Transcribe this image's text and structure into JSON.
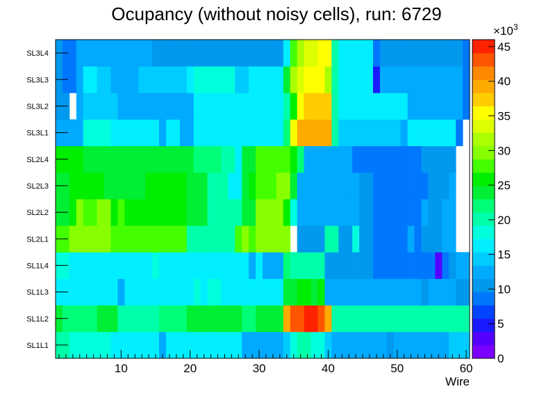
{
  "chart_data": {
    "type": "heatmap",
    "title": "Ocupancy (without noisy cells), run: 6729",
    "xlabel": "Wire",
    "x_ticks": [
      10,
      20,
      30,
      40,
      50,
      60
    ],
    "x_range": [
      0.5,
      60.5
    ],
    "layers": [
      "SL1L1",
      "SL1L2",
      "SL1L3",
      "SL1L4",
      "SL2L1",
      "SL2L2",
      "SL2L3",
      "SL2L4",
      "SL3L1",
      "SL3L2",
      "SL3L3",
      "SL3L4"
    ],
    "z_range": [
      0,
      46000
    ],
    "z_ticks": [
      0,
      5,
      10,
      15,
      20,
      25,
      30,
      35,
      40,
      45
    ],
    "z_exponent_label": "×10",
    "z_exponent_power": "3",
    "palette": [
      "#7a00ff",
      "#5500ff",
      "#1a1aff",
      "#0044ff",
      "#0077ff",
      "#0099ee",
      "#00aaff",
      "#00ccff",
      "#00eeff",
      "#00ffdd",
      "#00ffaa",
      "#00ff77",
      "#00ee33",
      "#00ee00",
      "#44ff00",
      "#88ff00",
      "#aaff00",
      "#ddff00",
      "#ffff00",
      "#ffcc00",
      "#ffaa00",
      "#ff8800",
      "#ff5500",
      "#ff2200"
    ],
    "rows": {
      "SL1L1": [
        20,
        20,
        18,
        18,
        18,
        18,
        18,
        18,
        17,
        17,
        17,
        17,
        17,
        17,
        17,
        12,
        17,
        17,
        17,
        17,
        17,
        17,
        17,
        17,
        17,
        17,
        17,
        12,
        12,
        12,
        12,
        12,
        12,
        14,
        18,
        20,
        20,
        18,
        18,
        14,
        12,
        12,
        12,
        12,
        12,
        12,
        12,
        12,
        10,
        12,
        12,
        12,
        12,
        12,
        12,
        12,
        12,
        14,
        14,
        14
      ],
      "SL1L2": [
        23,
        22,
        22,
        22,
        22,
        22,
        24,
        24,
        24,
        21,
        21,
        21,
        21,
        21,
        21,
        22,
        22,
        22,
        22,
        24,
        24,
        24,
        24,
        24,
        24,
        24,
        24,
        22,
        22,
        24,
        24,
        24,
        24,
        40,
        43,
        44,
        45,
        45,
        44,
        40,
        21,
        21,
        21,
        21,
        21,
        21,
        21,
        21,
        21,
        20,
        20,
        20,
        20,
        20,
        20,
        20,
        20,
        20,
        20,
        20
      ],
      "SL1L3": [
        16,
        16,
        16,
        16,
        16,
        16,
        16,
        16,
        16,
        12,
        16,
        16,
        16,
        16,
        16,
        16,
        16,
        16,
        16,
        16,
        18,
        16,
        18,
        18,
        16,
        16,
        16,
        16,
        16,
        16,
        16,
        16,
        16,
        24,
        24,
        26,
        26,
        24,
        26,
        12,
        12,
        12,
        12,
        12,
        12,
        12,
        12,
        12,
        12,
        12,
        12,
        12,
        12,
        11,
        12,
        12,
        12,
        12,
        11,
        11
      ],
      "SL1L4": [
        18,
        18,
        16,
        16,
        16,
        16,
        16,
        16,
        16,
        16,
        16,
        16,
        16,
        16,
        18,
        16,
        16,
        16,
        16,
        16,
        16,
        16,
        16,
        16,
        16,
        16,
        16,
        16,
        12,
        16,
        12,
        12,
        12,
        22,
        20,
        20,
        20,
        20,
        20,
        10,
        10,
        10,
        10,
        10,
        10,
        10,
        9,
        9,
        9,
        9,
        9,
        9,
        9,
        9,
        9,
        2,
        9,
        10,
        12,
        12
      ],
      "SL2L1": [
        28,
        28,
        30,
        30,
        30,
        30,
        30,
        30,
        28,
        28,
        28,
        28,
        28,
        28,
        28,
        28,
        28,
        28,
        28,
        21,
        21,
        21,
        21,
        21,
        21,
        21,
        28,
        30,
        28,
        30,
        30,
        30,
        30,
        30,
        0,
        10,
        10,
        10,
        10,
        21,
        21,
        10,
        10,
        18,
        10,
        10,
        9,
        9,
        9,
        9,
        9,
        12,
        9,
        10,
        10,
        10,
        12,
        12,
        0,
        0
      ],
      "SL2L2": [
        24,
        24,
        26,
        30,
        28,
        28,
        30,
        30,
        26,
        28,
        26,
        26,
        26,
        26,
        26,
        26,
        26,
        26,
        26,
        24,
        24,
        24,
        20,
        20,
        20,
        20,
        20,
        24,
        24,
        30,
        30,
        30,
        30,
        26,
        18,
        12,
        12,
        12,
        12,
        12,
        12,
        12,
        12,
        12,
        10,
        10,
        9,
        9,
        9,
        9,
        9,
        9,
        9,
        12,
        10,
        10,
        12,
        12,
        0,
        0
      ],
      "SL2L3": [
        24,
        24,
        26,
        26,
        26,
        26,
        26,
        24,
        24,
        24,
        24,
        24,
        24,
        26,
        26,
        26,
        26,
        26,
        26,
        24,
        24,
        24,
        20,
        20,
        20,
        17,
        17,
        24,
        26,
        28,
        28,
        28,
        30,
        30,
        24,
        12,
        12,
        12,
        12,
        12,
        12,
        12,
        12,
        12,
        10,
        10,
        9,
        9,
        9,
        9,
        9,
        9,
        9,
        9,
        10,
        10,
        10,
        12,
        0,
        0
      ],
      "SL2L4": [
        26,
        26,
        26,
        26,
        24,
        24,
        24,
        24,
        24,
        24,
        24,
        24,
        24,
        24,
        24,
        24,
        24,
        24,
        24,
        24,
        22,
        22,
        22,
        22,
        20,
        20,
        17,
        24,
        24,
        28,
        28,
        28,
        28,
        28,
        26,
        22,
        12,
        12,
        12,
        12,
        12,
        12,
        12,
        9,
        9,
        9,
        9,
        9,
        9,
        9,
        9,
        9,
        9,
        11,
        11,
        11,
        11,
        11,
        0,
        0
      ],
      "SL3L1": [
        12,
        12,
        12,
        12,
        18,
        18,
        18,
        18,
        16,
        16,
        16,
        16,
        16,
        16,
        16,
        12,
        16,
        16,
        12,
        12,
        16,
        16,
        16,
        16,
        16,
        16,
        16,
        16,
        16,
        16,
        16,
        16,
        16,
        22,
        36,
        40,
        40,
        39,
        40,
        40,
        20,
        14,
        14,
        14,
        14,
        14,
        14,
        14,
        14,
        14,
        12,
        16,
        17,
        17,
        17,
        17,
        17,
        17,
        9,
        0
      ],
      "SL3L2": [
        11,
        11,
        0,
        12,
        14,
        14,
        14,
        14,
        14,
        12,
        12,
        12,
        12,
        12,
        12,
        12,
        12,
        12,
        12,
        12,
        16,
        16,
        16,
        16,
        16,
        16,
        16,
        16,
        16,
        16,
        16,
        16,
        16,
        20,
        26,
        36,
        38,
        38,
        38,
        38,
        20,
        16,
        16,
        16,
        16,
        16,
        16,
        16,
        16,
        16,
        16,
        12,
        12,
        12,
        12,
        12,
        12,
        12,
        12,
        9
      ],
      "SL3L3": [
        10,
        8,
        8,
        12,
        16,
        16,
        14,
        14,
        12,
        12,
        12,
        12,
        14,
        14,
        14,
        14,
        14,
        14,
        14,
        16,
        18,
        18,
        18,
        18,
        18,
        18,
        14,
        14,
        16,
        16,
        16,
        16,
        16,
        24,
        32,
        34,
        36,
        36,
        36,
        32,
        20,
        16,
        16,
        16,
        16,
        16,
        5,
        12,
        12,
        12,
        12,
        12,
        12,
        12,
        12,
        12,
        12,
        12,
        12,
        9
      ],
      "SL3L4": [
        10,
        8,
        8,
        12,
        12,
        12,
        12,
        12,
        12,
        12,
        12,
        12,
        12,
        12,
        11,
        11,
        11,
        11,
        11,
        11,
        11,
        11,
        11,
        11,
        11,
        11,
        11,
        11,
        11,
        11,
        11,
        11,
        11,
        16,
        28,
        32,
        34,
        34,
        36,
        36,
        20,
        16,
        16,
        16,
        16,
        16,
        9,
        10,
        10,
        10,
        10,
        10,
        10,
        10,
        10,
        10,
        10,
        10,
        10,
        9
      ]
    }
  }
}
